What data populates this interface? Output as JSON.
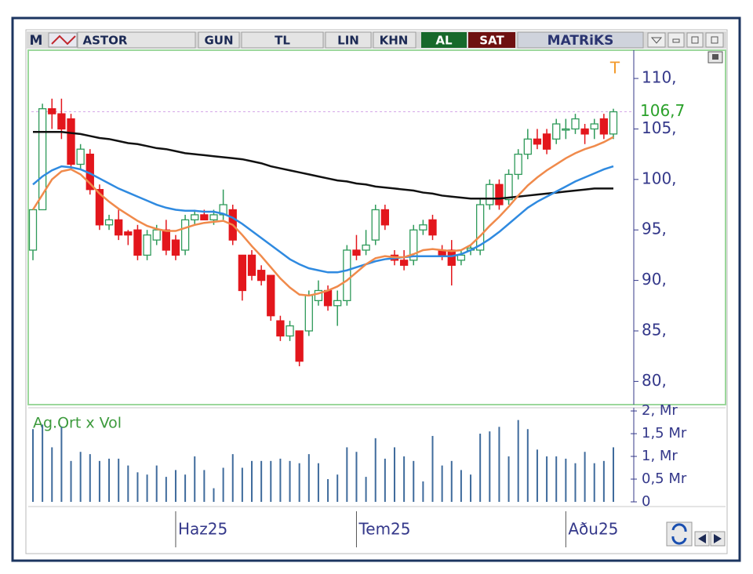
{
  "toolbar": {
    "symbol_icon": "M",
    "symbol": "ASTOR",
    "period": "GUN",
    "currency": "TL",
    "scale": "LIN",
    "mode": "KHN",
    "buy": "AL",
    "sell": "SAT",
    "brand": "MATRiKS"
  },
  "chart_data": [
    {
      "type": "candlestick",
      "categories": [
        null,
        null,
        null,
        null,
        null,
        null,
        null,
        null,
        null,
        null,
        null,
        null,
        null,
        null,
        null,
        "Haz25",
        null,
        null,
        null,
        null,
        null,
        null,
        null,
        null,
        null,
        null,
        null,
        null,
        null,
        null,
        null,
        null,
        null,
        null,
        "Tem25",
        null,
        null,
        null,
        null,
        null,
        null,
        null,
        null,
        null,
        null,
        null,
        null,
        null,
        null,
        null,
        null,
        null,
        null,
        null,
        null,
        null,
        "Aðu25",
        null,
        null,
        null,
        null,
        null
      ],
      "open": [
        93,
        97,
        107,
        106.5,
        106,
        101.5,
        102.5,
        99,
        95.5,
        96,
        94.8,
        95,
        92.5,
        94,
        95,
        94,
        93,
        96,
        96.5,
        96,
        96.5,
        97,
        92.5,
        92.5,
        91,
        90.5,
        86,
        84.5,
        85,
        85,
        88,
        89,
        87.5,
        88,
        93,
        93,
        94,
        97,
        92.5,
        92,
        92,
        95,
        96,
        93,
        93,
        92,
        93,
        93,
        97.5,
        99.5,
        98,
        100.5,
        102.5,
        104,
        104.5,
        104,
        105,
        105,
        105,
        105,
        106,
        104.5
      ],
      "high": [
        97,
        107.5,
        108,
        108,
        106.5,
        103.5,
        103,
        99.5,
        96.5,
        97,
        95,
        95.5,
        95,
        95.5,
        96,
        94.5,
        96.5,
        97,
        97,
        97,
        99,
        97.5,
        92.5,
        93,
        91.5,
        90.5,
        86.5,
        86,
        85,
        89,
        90,
        89.5,
        89,
        93.5,
        94.5,
        95,
        97.5,
        97.5,
        93,
        93,
        95.5,
        96,
        96.5,
        93.5,
        94,
        93,
        93.5,
        98,
        100,
        100,
        101,
        103,
        105,
        105,
        105,
        106,
        106,
        106.5,
        105.5,
        106,
        106.5,
        107
      ],
      "low": [
        92,
        97,
        105,
        104,
        101,
        101,
        98.5,
        95,
        95,
        94,
        93.5,
        92,
        92,
        93.5,
        92.5,
        92,
        92.5,
        95.5,
        96,
        95.5,
        96,
        93.5,
        88,
        90,
        89.5,
        86,
        84,
        84,
        81.5,
        84.5,
        87.5,
        87,
        85.5,
        87.5,
        92,
        92.5,
        93.5,
        95,
        91.5,
        91,
        91.5,
        94.5,
        94,
        92,
        89.5,
        91.5,
        92.5,
        92.5,
        97,
        97,
        97.5,
        100,
        102,
        103,
        102.5,
        103.5,
        104,
        104.5,
        103.5,
        104,
        104,
        104
      ],
      "close": [
        97,
        107,
        106.5,
        105,
        101.5,
        103,
        99,
        95.5,
        96,
        94.5,
        94.5,
        92.5,
        94.5,
        95,
        93,
        92.5,
        96,
        96.5,
        96,
        96.5,
        97.5,
        94,
        89,
        90.5,
        90,
        86.5,
        84.5,
        85.5,
        82,
        88.5,
        89,
        87.5,
        88,
        93,
        92.5,
        93.5,
        97,
        95.5,
        92,
        91.5,
        95,
        95.5,
        94.5,
        92.5,
        91.5,
        92.5,
        93.2,
        97.5,
        99.5,
        97.5,
        100.5,
        102.5,
        104,
        103.5,
        103,
        105.5,
        105,
        106,
        104.5,
        105.5,
        104.5,
        106.7
      ],
      "up_color": "#2f9a5a",
      "down_color": "#e3161c",
      "moving_averages": [
        {
          "color": "#111111",
          "values": [
            104.7,
            104.7,
            104.7,
            104.7,
            104.6,
            104.5,
            104.3,
            104.1,
            104.0,
            103.8,
            103.6,
            103.5,
            103.3,
            103.1,
            103.0,
            102.8,
            102.6,
            102.5,
            102.4,
            102.3,
            102.2,
            102.1,
            102.0,
            101.8,
            101.6,
            101.3,
            101.1,
            100.9,
            100.7,
            100.5,
            100.3,
            100.1,
            99.9,
            99.8,
            99.6,
            99.5,
            99.3,
            99.2,
            99.1,
            99.0,
            98.9,
            98.7,
            98.6,
            98.4,
            98.3,
            98.2,
            98.1,
            98.1,
            98.1,
            98.1,
            98.2,
            98.3,
            98.4,
            98.5,
            98.6,
            98.7,
            98.8,
            98.9,
            99.0,
            99.1,
            99.1,
            99.1
          ]
        },
        {
          "color": "#2f8ae0",
          "values": [
            99.5,
            100.3,
            100.9,
            101.3,
            101.2,
            101.0,
            100.6,
            100.1,
            99.6,
            99.1,
            98.7,
            98.3,
            97.9,
            97.5,
            97.2,
            97.0,
            96.9,
            96.9,
            96.8,
            96.8,
            96.6,
            96.2,
            95.6,
            94.9,
            94.2,
            93.5,
            92.8,
            92.1,
            91.6,
            91.2,
            91.0,
            90.8,
            90.8,
            91.0,
            91.3,
            91.6,
            91.9,
            92.1,
            92.2,
            92.3,
            92.4,
            92.4,
            92.4,
            92.4,
            92.4,
            92.6,
            93.0,
            93.5,
            94.1,
            94.8,
            95.6,
            96.4,
            97.2,
            97.8,
            98.3,
            98.8,
            99.3,
            99.8,
            100.2,
            100.6,
            101.0,
            101.3
          ]
        },
        {
          "color": "#f08a4b",
          "values": [
            97,
            98.5,
            100,
            100.8,
            101,
            100.5,
            99.6,
            98.6,
            97.8,
            97.1,
            96.5,
            95.9,
            95.4,
            95.1,
            94.9,
            94.9,
            95.2,
            95.5,
            95.7,
            95.8,
            95.9,
            95.5,
            94.5,
            93.4,
            92.4,
            91.3,
            90.2,
            89.3,
            88.6,
            88.5,
            88.7,
            89.0,
            89.4,
            90.0,
            90.8,
            91.6,
            92.2,
            92.4,
            92.3,
            92.3,
            92.6,
            93.0,
            93.1,
            93.0,
            92.9,
            93.0,
            93.5,
            94.4,
            95.4,
            96.3,
            97.3,
            98.4,
            99.4,
            100.2,
            100.9,
            101.5,
            102.1,
            102.6,
            103.0,
            103.3,
            103.7,
            104.2
          ]
        }
      ],
      "ylim": [
        77.7,
        112.8
      ],
      "yticks": [
        {
          "value": 80,
          "label": "80,"
        },
        {
          "value": 85,
          "label": "85,"
        },
        {
          "value": 90,
          "label": "90,"
        },
        {
          "value": 95,
          "label": "95,"
        },
        {
          "value": 100,
          "label": "100,"
        },
        {
          "value": 105,
          "label": "105,"
        },
        {
          "value": 110,
          "label": "110,"
        }
      ],
      "last_price": {
        "value": 106.7,
        "label": "106,7"
      },
      "marker": "T"
    },
    {
      "type": "bar",
      "title": "Ag.Ort x Vol",
      "values": [
        1.6,
        1.7,
        1.2,
        1.65,
        0.9,
        1.1,
        1.05,
        0.9,
        0.95,
        0.95,
        0.8,
        0.65,
        0.6,
        0.8,
        0.55,
        0.7,
        0.6,
        1.0,
        0.7,
        0.3,
        0.75,
        1.05,
        0.75,
        0.9,
        0.9,
        0.9,
        0.95,
        0.9,
        0.85,
        1.05,
        0.85,
        0.5,
        0.6,
        1.2,
        1.1,
        0.55,
        1.4,
        0.95,
        1.2,
        1.0,
        0.9,
        0.45,
        1.45,
        0.8,
        0.9,
        0.7,
        0.6,
        1.5,
        1.55,
        1.65,
        1.0,
        1.8,
        1.6,
        1.15,
        1.0,
        1.0,
        0.95,
        0.85,
        1.1,
        0.85,
        0.9,
        1.2
      ],
      "color": "#3f6b9c",
      "ylim": [
        0,
        2.07
      ],
      "yticks": [
        0,
        {
          "value": 0.5,
          "label": "0,5 Mr"
        },
        {
          "value": 1,
          "label": "1, Mr"
        },
        {
          "value": 1.5,
          "label": "1,5 Mr"
        },
        {
          "value": 2,
          "label": "2, Mr"
        }
      ]
    }
  ]
}
